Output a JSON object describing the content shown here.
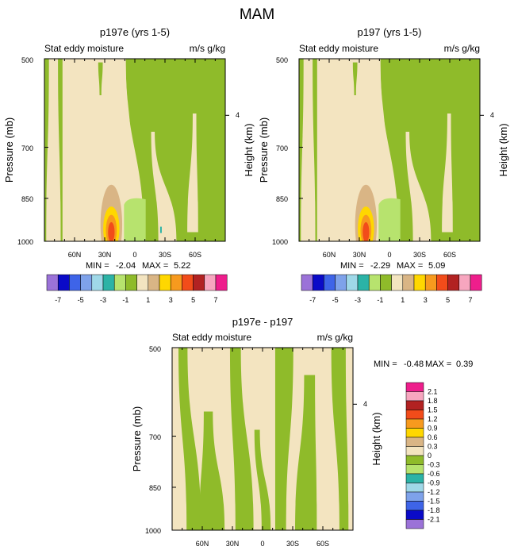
{
  "page_title": "MAM",
  "colors": {
    "tan": "#f3e4c0",
    "green": "#8fbb2a",
    "lightgreen": "#b7e36e",
    "peach": "#d9b585",
    "yellow": "#ffd700",
    "orange": "#f79a1e",
    "redorange": "#f24c1a",
    "teal": "#2bb3a6",
    "cyan": "#9fd8e8"
  },
  "chart_data": [
    {
      "id": "top-left",
      "type": "contour",
      "title": "p197e (yrs 1-5)",
      "left_label": "Stat eddy moisture",
      "right_label": "m/s g/kg",
      "ylabel": "Pressure (mb)",
      "y2label": "Height (km)",
      "y_ticks": [
        "500",
        "700",
        "850",
        "1000"
      ],
      "y2_ticks": [
        "4"
      ],
      "x_ticks": [
        "60N",
        "30N",
        "0",
        "30S",
        "60S"
      ],
      "min_label": "MIN =",
      "min_value": "-2.04",
      "max_label": "MAX =",
      "max_value": "5.22",
      "features": {
        "peak_levels": 4,
        "light_patch": true,
        "blue_dot": true
      }
    },
    {
      "id": "top-right",
      "type": "contour",
      "title": "p197 (yrs 1-5)",
      "left_label": "Stat eddy moisture",
      "right_label": "m/s g/kg",
      "ylabel": "Pressure (mb)",
      "y2label": "Height (km)",
      "y_ticks": [
        "500",
        "700",
        "850",
        "1000"
      ],
      "y2_ticks": [
        "4"
      ],
      "x_ticks": [
        "60N",
        "30N",
        "0",
        "30S",
        "60S"
      ],
      "min_label": "MIN =",
      "min_value": "-2.29",
      "max_label": "MAX =",
      "max_value": "5.09",
      "features": {
        "peak_levels": 4,
        "light_patch": true,
        "blue_dot": false
      }
    },
    {
      "id": "bottom",
      "type": "contour",
      "title": "p197e - p197",
      "left_label": "Stat eddy moisture",
      "right_label": "m/s g/kg",
      "ylabel": "Pressure (mb)",
      "y2label": "Height (km)",
      "y_ticks": [
        "500",
        "700",
        "850",
        "1000"
      ],
      "y2_ticks": [
        "4"
      ],
      "x_ticks": [
        "60N",
        "30N",
        "0",
        "30S",
        "60S"
      ],
      "min_label": "MIN =",
      "min_value": "-0.48",
      "max_label": "MAX =",
      "max_value": "0.39"
    }
  ],
  "colorbar_top": {
    "colors": [
      "#9b72d8",
      "#0a0ac8",
      "#3e64e8",
      "#7ea2ea",
      "#9fd8e8",
      "#2bb3a6",
      "#b7e36e",
      "#8fbb2a",
      "#f3e4c0",
      "#d9b585",
      "#ffd700",
      "#f79a1e",
      "#f24c1a",
      "#b22222",
      "#f7a6bf",
      "#ee1e8c"
    ],
    "labels": [
      "-7",
      "-5",
      "-3",
      "-1",
      "1",
      "3",
      "5",
      "7"
    ]
  },
  "colorbar_diff": {
    "colors": [
      "#ee1e8c",
      "#f7a6bf",
      "#b22222",
      "#f24c1a",
      "#f79a1e",
      "#ffd700",
      "#d9b585",
      "#f3e4c0",
      "#8fbb2a",
      "#b7e36e",
      "#2bb3a6",
      "#9fd8e8",
      "#7ea2ea",
      "#3e64e8",
      "#0a0ac8",
      "#9b72d8"
    ],
    "labels": [
      "2.1",
      "1.8",
      "1.5",
      "1.2",
      "0.9",
      "0.6",
      "0.3",
      "0",
      "-0.3",
      "-0.6",
      "-0.9",
      "-1.2",
      "-1.5",
      "-1.8",
      "-2.1"
    ]
  }
}
